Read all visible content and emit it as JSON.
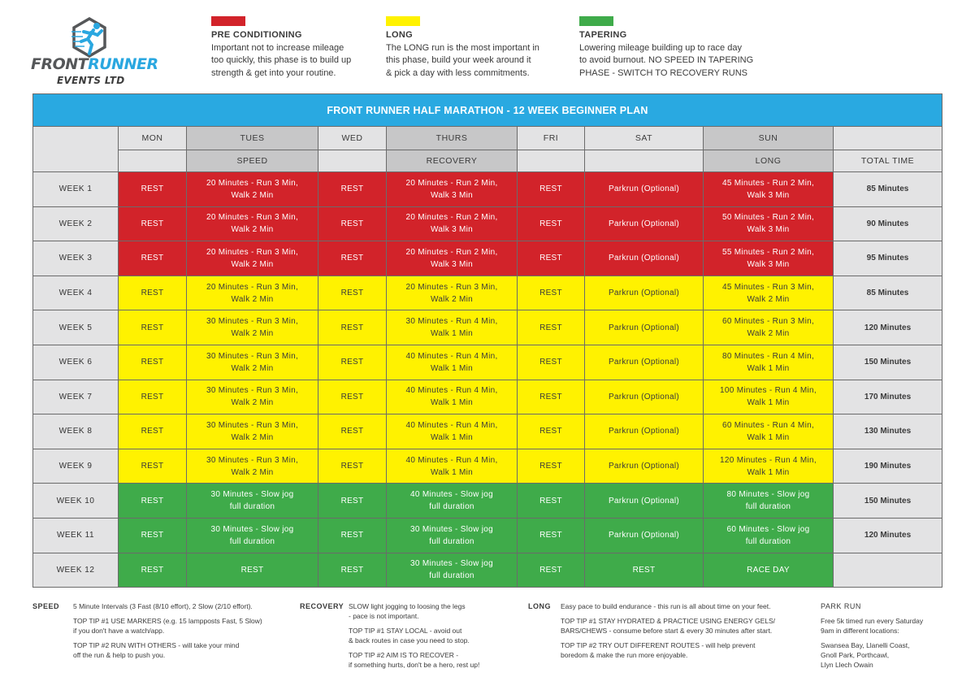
{
  "logo": {
    "word_front": "FRONT",
    "word_runner": "RUNNER",
    "subtitle": "EVENTS LTD",
    "icon": "running-man-hexagon-icon"
  },
  "legend": [
    {
      "color": "#d2232a",
      "title": "PRE CONDITIONING",
      "lines": [
        "Important not to increase mileage",
        "too quickly, this phase is to build up",
        "strength & get into your routine."
      ]
    },
    {
      "color": "#fff200",
      "title": "LONG",
      "lines": [
        "The LONG run is the most important in",
        "this phase, build your week around it",
        "& pick a day with less commitments."
      ]
    },
    {
      "color": "#3fab4a",
      "title": "TAPERING",
      "lines": [
        "Lowering mileage building up to race day",
        "to avoid burnout. NO SPEED IN TAPERING",
        "PHASE - SWITCH TO RECOVERY RUNS"
      ]
    }
  ],
  "table": {
    "title": "FRONT RUNNER HALF MARATHON - 12 WEEK BEGINNER PLAN",
    "days": [
      "MON",
      "TUES",
      "WED",
      "THURS",
      "FRI",
      "SAT",
      "SUN",
      ""
    ],
    "session_types": [
      "",
      "SPEED",
      "",
      "RECOVERY",
      "",
      "",
      "LONG",
      "TOTAL TIME"
    ],
    "colors": {
      "pre_conditioning": "#d2232a",
      "long": "#fff200",
      "tapering": "#3fab4a",
      "header_blue": "#29a9e1"
    },
    "weeks": [
      {
        "label": "WEEK 1",
        "phase": "red",
        "mon": "REST",
        "tue": [
          "20 Minutes - Run 3 Min,",
          "Walk 2 Min"
        ],
        "wed": "REST",
        "thu": [
          "20 Minutes - Run 2 Min,",
          "Walk 3 Min"
        ],
        "fri": "REST",
        "sat": "Parkrun (Optional)",
        "sun": [
          "45 Minutes - Run 2 Min,",
          "Walk 3 Min"
        ],
        "total": "85 Minutes"
      },
      {
        "label": "WEEK 2",
        "phase": "red",
        "mon": "REST",
        "tue": [
          "20 Minutes - Run 3 Min,",
          "Walk 2 Min"
        ],
        "wed": "REST",
        "thu": [
          "20 Minutes - Run 2 Min,",
          "Walk 3 Min"
        ],
        "fri": "REST",
        "sat": "Parkrun (Optional)",
        "sun": [
          "50 Minutes - Run 2 Min,",
          "Walk 3 Min"
        ],
        "total": "90 Minutes"
      },
      {
        "label": "WEEK 3",
        "phase": "red",
        "mon": "REST",
        "tue": [
          "20 Minutes - Run 3 Min,",
          "Walk 2 Min"
        ],
        "wed": "REST",
        "thu": [
          "20 Minutes - Run 2 Min,",
          "Walk 3 Min"
        ],
        "fri": "REST",
        "sat": "Parkrun (Optional)",
        "sun": [
          "55 Minutes - Run 2 Min,",
          "Walk 3 Min"
        ],
        "total": "95 Minutes"
      },
      {
        "label": "WEEK 4",
        "phase": "yellow",
        "mon": "REST",
        "tue": [
          "20 Minutes - Run 3 Min,",
          "Walk 2 Min"
        ],
        "wed": "REST",
        "thu": [
          "20 Minutes - Run 3 Min,",
          "Walk 2 Min"
        ],
        "fri": "REST",
        "sat": "Parkrun (Optional)",
        "sun": [
          "45 Minutes - Run 3 Min,",
          "Walk 2 Min"
        ],
        "total": "85 Minutes"
      },
      {
        "label": "WEEK 5",
        "phase": "yellow",
        "mon": "REST",
        "tue": [
          "30 Minutes - Run 3 Min,",
          "Walk 2 Min"
        ],
        "wed": "REST",
        "thu": [
          "30 Minutes - Run 4 Min,",
          "Walk 1 Min"
        ],
        "fri": "REST",
        "sat": "Parkrun (Optional)",
        "sun": [
          "60 Minutes - Run 3 Min,",
          "Walk 2 Min"
        ],
        "total": "120 Minutes"
      },
      {
        "label": "WEEK 6",
        "phase": "yellow",
        "mon": "REST",
        "tue": [
          "30 Minutes - Run 3 Min,",
          "Walk 2 Min"
        ],
        "wed": "REST",
        "thu": [
          "40 Minutes - Run 4 Min,",
          "Walk 1 Min"
        ],
        "fri": "REST",
        "sat": "Parkrun (Optional)",
        "sun": [
          "80 Minutes - Run 4 Min,",
          "Walk 1 Min"
        ],
        "total": "150 Minutes"
      },
      {
        "label": "WEEK 7",
        "phase": "yellow",
        "mon": "REST",
        "tue": [
          "30 Minutes - Run 3 Min,",
          "Walk 2 Min"
        ],
        "wed": "REST",
        "thu": [
          "40 Minutes - Run 4 Min,",
          "Walk 1 Min"
        ],
        "fri": "REST",
        "sat": "Parkrun (Optional)",
        "sun": [
          "100 Minutes - Run 4 Min,",
          "Walk 1 Min"
        ],
        "total": "170 Minutes"
      },
      {
        "label": "WEEK 8",
        "phase": "yellow",
        "mon": "REST",
        "tue": [
          "30 Minutes - Run 3 Min,",
          "Walk 2 Min"
        ],
        "wed": "REST",
        "thu": [
          "40 Minutes - Run 4 Min,",
          "Walk 1 Min"
        ],
        "fri": "REST",
        "sat": "Parkrun (Optional)",
        "sun": [
          "60 Minutes - Run 4 Min,",
          "Walk 1 Min"
        ],
        "total": "130 Minutes"
      },
      {
        "label": "WEEK 9",
        "phase": "yellow",
        "mon": "REST",
        "tue": [
          "30 Minutes - Run 3 Min,",
          "Walk 2 Min"
        ],
        "wed": "REST",
        "thu": [
          "40 Minutes - Run 4 Min,",
          "Walk 1 Min"
        ],
        "fri": "REST",
        "sat": "Parkrun (Optional)",
        "sun": [
          "120 Minutes - Run 4 Min,",
          "Walk 1 Min"
        ],
        "total": "190 Minutes"
      },
      {
        "label": "WEEK 10",
        "phase": "green",
        "mon": "REST",
        "tue": [
          "30 Minutes - Slow jog",
          "full duration"
        ],
        "wed": "REST",
        "thu": [
          "40 Minutes - Slow jog",
          "full duration"
        ],
        "fri": "REST",
        "sat": "Parkrun (Optional)",
        "sun": [
          "80 Minutes - Slow jog",
          "full duration"
        ],
        "total": "150 Minutes"
      },
      {
        "label": "WEEK 11",
        "phase": "green",
        "mon": "REST",
        "tue": [
          "30 Minutes - Slow jog",
          "full duration"
        ],
        "wed": "REST",
        "thu": [
          "30 Minutes - Slow jog",
          "full duration"
        ],
        "fri": "REST",
        "sat": "Parkrun (Optional)",
        "sun": [
          "60 Minutes - Slow jog",
          "full duration"
        ],
        "total": "120 Minutes"
      },
      {
        "label": "WEEK 12",
        "phase": "green",
        "mon": "REST",
        "tue": [
          "REST"
        ],
        "wed": "REST",
        "thu": [
          "30 Minutes - Slow jog",
          "full duration"
        ],
        "fri": "REST",
        "sat": "REST",
        "sun": [
          "RACE DAY"
        ],
        "total": ""
      }
    ]
  },
  "notes": {
    "speed": {
      "label": "SPEED",
      "paragraphs": [
        [
          "5 Minute Intervals (3 Fast (8/10 effort), 2 Slow (2/10 effort)."
        ],
        [
          "TOP TIP #1 USE MARKERS (e.g. 15 lampposts Fast, 5 Slow)",
          "if you don't have a watch/app."
        ],
        [
          "TOP TIP #2 RUN WITH OTHERS - will take your mind",
          "off the run & help to push you."
        ]
      ]
    },
    "recovery": {
      "label": "RECOVERY",
      "paragraphs": [
        [
          "SLOW light jogging to loosing the legs",
          "- pace is not important."
        ],
        [
          "TOP TIP #1 STAY LOCAL - avoid out",
          "& back routes in case you need to stop."
        ],
        [
          "TOP TIP #2 AIM IS TO RECOVER -",
          "if something hurts, don't be a hero, rest up!"
        ]
      ]
    },
    "long": {
      "label": "LONG",
      "paragraphs": [
        [
          "Easy pace to build endurance - this run is all about time on your feet."
        ],
        [
          "TOP TIP #1 STAY HYDRATED & PRACTICE USING ENERGY GELS/",
          "BARS/CHEWS - consume before start & every 30 minutes after start."
        ],
        [
          "TOP TIP #2 TRY OUT DIFFERENT ROUTES - will help prevent",
          "boredom & make the run more enjoyable."
        ]
      ]
    },
    "park_run": {
      "label": "PARK RUN",
      "paragraphs": [
        [
          "Free 5k timed run every Saturday",
          "9am in different locations:"
        ],
        [
          "Swansea Bay, Llanelli Coast,",
          "Gnoll Park, Porthcawl,",
          "Llyn Llech Owain"
        ]
      ]
    }
  }
}
